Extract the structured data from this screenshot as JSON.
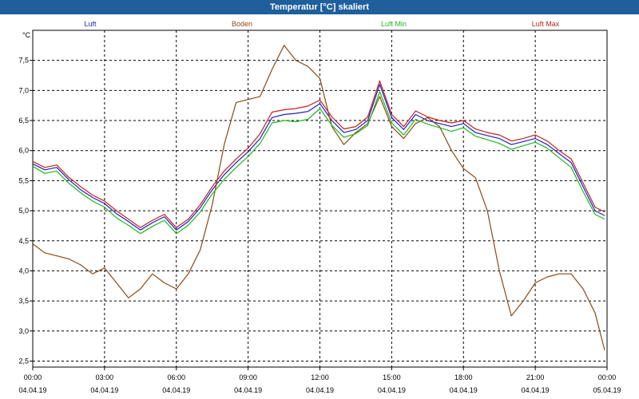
{
  "window": {
    "title": "Temperatur [°C] skaliert"
  },
  "chart_data": {
    "type": "line",
    "title": "Temperatur [°C] skaliert",
    "ylabel": "°C",
    "xlabel": "",
    "ylim": [
      2.4,
      8.0
    ],
    "xlim_hours": [
      0,
      24
    ],
    "grid": true,
    "legend_position": "top",
    "y_ticks": [
      "2,5",
      "3,0",
      "3,5",
      "4,0",
      "4,5",
      "5,0",
      "5,5",
      "6,0",
      "6,5",
      "7,0",
      "7,5"
    ],
    "x_ticks": [
      {
        "time": "00:00",
        "date": "04.04.19"
      },
      {
        "time": "03:00",
        "date": "04.04.19"
      },
      {
        "time": "06:00",
        "date": "04.04.19"
      },
      {
        "time": "09:00",
        "date": "04.04.19"
      },
      {
        "time": "12:00",
        "date": "04.04.19"
      },
      {
        "time": "15:00",
        "date": "04.04.19"
      },
      {
        "time": "18:00",
        "date": "04.04.19"
      },
      {
        "time": "21:00",
        "date": "04.04.19"
      },
      {
        "time": "00:00",
        "date": "05.04.19"
      }
    ],
    "series": [
      {
        "name": "Luft",
        "color": "#1f1fc4",
        "points": [
          [
            0,
            5.78
          ],
          [
            0.5,
            5.68
          ],
          [
            1,
            5.72
          ],
          [
            1.5,
            5.52
          ],
          [
            2,
            5.35
          ],
          [
            2.5,
            5.22
          ],
          [
            3,
            5.12
          ],
          [
            3.5,
            4.95
          ],
          [
            4,
            4.82
          ],
          [
            4.5,
            4.68
          ],
          [
            5,
            4.8
          ],
          [
            5.5,
            4.9
          ],
          [
            6,
            4.68
          ],
          [
            6.5,
            4.82
          ],
          [
            7,
            5.05
          ],
          [
            7.5,
            5.35
          ],
          [
            8,
            5.6
          ],
          [
            8.5,
            5.8
          ],
          [
            9,
            5.98
          ],
          [
            9.5,
            6.2
          ],
          [
            10,
            6.55
          ],
          [
            10.5,
            6.6
          ],
          [
            11,
            6.62
          ],
          [
            11.5,
            6.65
          ],
          [
            12,
            6.78
          ],
          [
            12.5,
            6.5
          ],
          [
            13,
            6.3
          ],
          [
            13.5,
            6.35
          ],
          [
            14,
            6.5
          ],
          [
            14.5,
            7.1
          ],
          [
            15,
            6.55
          ],
          [
            15.5,
            6.35
          ],
          [
            16,
            6.6
          ],
          [
            16.5,
            6.5
          ],
          [
            17,
            6.45
          ],
          [
            17.5,
            6.4
          ],
          [
            18,
            6.45
          ],
          [
            18.5,
            6.3
          ],
          [
            19,
            6.25
          ],
          [
            19.5,
            6.2
          ],
          [
            20,
            6.1
          ],
          [
            20.5,
            6.15
          ],
          [
            21,
            6.2
          ],
          [
            21.5,
            6.1
          ],
          [
            22,
            5.95
          ],
          [
            22.5,
            5.8
          ],
          [
            23,
            5.4
          ],
          [
            23.5,
            5.0
          ],
          [
            23.9,
            4.92
          ]
        ]
      },
      {
        "name": "Boden",
        "color": "#8b4a12",
        "points": [
          [
            0,
            4.45
          ],
          [
            0.5,
            4.3
          ],
          [
            1,
            4.25
          ],
          [
            1.5,
            4.2
          ],
          [
            2,
            4.1
          ],
          [
            2.5,
            3.95
          ],
          [
            3,
            4.05
          ],
          [
            3.5,
            3.8
          ],
          [
            4,
            3.55
          ],
          [
            4.5,
            3.7
          ],
          [
            5,
            3.95
          ],
          [
            5.5,
            3.8
          ],
          [
            6,
            3.7
          ],
          [
            6.5,
            3.95
          ],
          [
            7,
            4.35
          ],
          [
            7.5,
            5.1
          ],
          [
            8,
            6.1
          ],
          [
            8.5,
            6.8
          ],
          [
            9,
            6.85
          ],
          [
            9.5,
            6.9
          ],
          [
            10,
            7.35
          ],
          [
            10.5,
            7.75
          ],
          [
            11,
            7.5
          ],
          [
            11.5,
            7.4
          ],
          [
            12,
            7.2
          ],
          [
            12.5,
            6.4
          ],
          [
            13,
            6.1
          ],
          [
            13.5,
            6.3
          ],
          [
            14,
            6.45
          ],
          [
            14.5,
            6.9
          ],
          [
            15,
            6.4
          ],
          [
            15.5,
            6.2
          ],
          [
            16,
            6.45
          ],
          [
            16.5,
            6.55
          ],
          [
            17,
            6.4
          ],
          [
            17.5,
            6.0
          ],
          [
            18,
            5.7
          ],
          [
            18.5,
            5.55
          ],
          [
            19,
            5.0
          ],
          [
            19.5,
            4.0
          ],
          [
            20,
            3.25
          ],
          [
            20.5,
            3.5
          ],
          [
            21,
            3.8
          ],
          [
            21.5,
            3.9
          ],
          [
            22,
            3.95
          ],
          [
            22.5,
            3.95
          ],
          [
            23,
            3.7
          ],
          [
            23.5,
            3.3
          ],
          [
            23.9,
            2.68
          ]
        ]
      },
      {
        "name": "Luft Min",
        "color": "#1db81d",
        "points": [
          [
            0,
            5.74
          ],
          [
            0.5,
            5.62
          ],
          [
            1,
            5.66
          ],
          [
            1.5,
            5.46
          ],
          [
            2,
            5.3
          ],
          [
            2.5,
            5.16
          ],
          [
            3,
            5.06
          ],
          [
            3.5,
            4.88
          ],
          [
            4,
            4.76
          ],
          [
            4.5,
            4.62
          ],
          [
            5,
            4.74
          ],
          [
            5.5,
            4.84
          ],
          [
            6,
            4.62
          ],
          [
            6.5,
            4.76
          ],
          [
            7,
            4.98
          ],
          [
            7.5,
            5.28
          ],
          [
            8,
            5.52
          ],
          [
            8.5,
            5.72
          ],
          [
            9,
            5.9
          ],
          [
            9.5,
            6.12
          ],
          [
            10,
            6.46
          ],
          [
            10.5,
            6.5
          ],
          [
            11,
            6.48
          ],
          [
            11.5,
            6.52
          ],
          [
            12,
            6.7
          ],
          [
            12.5,
            6.42
          ],
          [
            13,
            6.22
          ],
          [
            13.5,
            6.28
          ],
          [
            14,
            6.42
          ],
          [
            14.5,
            6.98
          ],
          [
            15,
            6.46
          ],
          [
            15.5,
            6.26
          ],
          [
            16,
            6.52
          ],
          [
            16.5,
            6.44
          ],
          [
            17,
            6.38
          ],
          [
            17.5,
            6.32
          ],
          [
            18,
            6.38
          ],
          [
            18.5,
            6.24
          ],
          [
            19,
            6.18
          ],
          [
            19.5,
            6.12
          ],
          [
            20,
            6.02
          ],
          [
            20.5,
            6.08
          ],
          [
            21,
            6.14
          ],
          [
            21.5,
            6.04
          ],
          [
            22,
            5.88
          ],
          [
            22.5,
            5.72
          ],
          [
            23,
            5.32
          ],
          [
            23.5,
            4.94
          ],
          [
            23.9,
            4.86
          ]
        ]
      },
      {
        "name": "Luft Max",
        "color": "#c41f1f",
        "points": [
          [
            0,
            5.82
          ],
          [
            0.5,
            5.72
          ],
          [
            1,
            5.76
          ],
          [
            1.5,
            5.56
          ],
          [
            2,
            5.4
          ],
          [
            2.5,
            5.26
          ],
          [
            3,
            5.16
          ],
          [
            3.5,
            5.0
          ],
          [
            4,
            4.86
          ],
          [
            4.5,
            4.72
          ],
          [
            5,
            4.84
          ],
          [
            5.5,
            4.94
          ],
          [
            6,
            4.72
          ],
          [
            6.5,
            4.86
          ],
          [
            7,
            5.1
          ],
          [
            7.5,
            5.4
          ],
          [
            8,
            5.66
          ],
          [
            8.5,
            5.86
          ],
          [
            9,
            6.04
          ],
          [
            9.5,
            6.28
          ],
          [
            10,
            6.64
          ],
          [
            10.5,
            6.68
          ],
          [
            11,
            6.7
          ],
          [
            11.5,
            6.74
          ],
          [
            12,
            6.84
          ],
          [
            12.5,
            6.56
          ],
          [
            13,
            6.36
          ],
          [
            13.5,
            6.4
          ],
          [
            14,
            6.56
          ],
          [
            14.5,
            7.16
          ],
          [
            15,
            6.6
          ],
          [
            15.5,
            6.4
          ],
          [
            16,
            6.66
          ],
          [
            16.5,
            6.56
          ],
          [
            17,
            6.5
          ],
          [
            17.5,
            6.46
          ],
          [
            18,
            6.5
          ],
          [
            18.5,
            6.36
          ],
          [
            19,
            6.3
          ],
          [
            19.5,
            6.26
          ],
          [
            20,
            6.16
          ],
          [
            20.5,
            6.2
          ],
          [
            21,
            6.26
          ],
          [
            21.5,
            6.16
          ],
          [
            22,
            6.0
          ],
          [
            22.5,
            5.86
          ],
          [
            23,
            5.46
          ],
          [
            23.5,
            5.06
          ],
          [
            23.9,
            4.98
          ]
        ]
      }
    ]
  }
}
